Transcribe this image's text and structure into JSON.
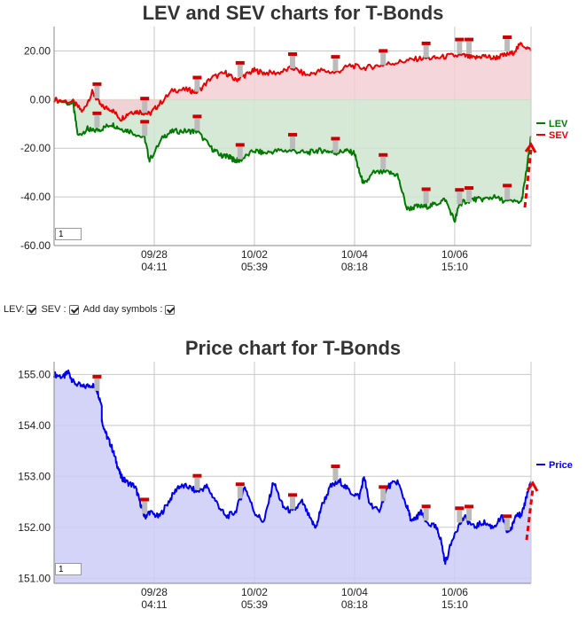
{
  "chart_data": [
    {
      "type": "area",
      "title": "LEV and SEV charts for T-Bonds",
      "xlabel": "",
      "ylabel": "",
      "ylim": [
        -60,
        30
      ],
      "yticks": [
        "20.00",
        "0.00",
        "-20.00",
        "-40.00",
        "-60.00"
      ],
      "ytick_values": [
        20,
        0,
        -20,
        -40,
        -60
      ],
      "xticks": [
        {
          "date": "09/28",
          "time": "04:11",
          "x": 0.21
        },
        {
          "date": "10/02",
          "time": "05:39",
          "x": 0.42
        },
        {
          "date": "10/04",
          "time": "08:18",
          "x": 0.63
        },
        {
          "date": "10/06",
          "time": "15:10",
          "x": 0.84
        }
      ],
      "legend_position": "right",
      "zoom_value": "1",
      "series": [
        {
          "name": "LEV",
          "color": "#007a00",
          "fill": "#cfe5cf",
          "x": [
            0,
            0.04,
            0.05,
            0.07,
            0.08,
            0.1,
            0.12,
            0.14,
            0.16,
            0.19,
            0.2,
            0.23,
            0.25,
            0.28,
            0.3,
            0.33,
            0.35,
            0.36,
            0.37,
            0.38,
            0.39,
            0.42,
            0.44,
            0.47,
            0.5,
            0.53,
            0.55,
            0.57,
            0.59,
            0.61,
            0.63,
            0.64,
            0.65,
            0.67,
            0.7,
            0.72,
            0.74,
            0.76,
            0.78,
            0.8,
            0.82,
            0.84,
            0.85,
            0.86,
            0.88,
            0.9,
            0.92,
            0.95,
            0.98,
            0.99,
            1.0
          ],
          "y": [
            0,
            -2,
            -15,
            -12,
            -13,
            -12,
            -10,
            -12,
            -13,
            -16,
            -25,
            -15,
            -13,
            -13,
            -13,
            -20,
            -23,
            -23,
            -24,
            -25,
            -25,
            -21,
            -22,
            -21,
            -21,
            -22,
            -21,
            -21,
            -22,
            -21,
            -22,
            -30,
            -35,
            -30,
            -30,
            -31,
            -45,
            -44,
            -44,
            -43,
            -41,
            -50,
            -43,
            -42,
            -41,
            -41,
            -40,
            -42,
            -42,
            -30,
            -15
          ]
        },
        {
          "name": "SEV",
          "color": "#ee0000",
          "fill": "#f3cfd3",
          "x": [
            0,
            0.04,
            0.06,
            0.08,
            0.1,
            0.12,
            0.14,
            0.16,
            0.18,
            0.2,
            0.22,
            0.25,
            0.28,
            0.3,
            0.33,
            0.36,
            0.38,
            0.4,
            0.42,
            0.44,
            0.47,
            0.5,
            0.53,
            0.56,
            0.59,
            0.62,
            0.65,
            0.68,
            0.71,
            0.74,
            0.77,
            0.8,
            0.83,
            0.86,
            0.88,
            0.9,
            0.92,
            0.94,
            0.96,
            0.98,
            1.0
          ],
          "y": [
            0,
            -1,
            -5,
            3,
            -3,
            -4,
            -8,
            -5,
            -5,
            -6,
            -2,
            4,
            4,
            3,
            9,
            11,
            8,
            10,
            12,
            11,
            11,
            13,
            10,
            12,
            11,
            14,
            13,
            14,
            15,
            16,
            17,
            17,
            18,
            18,
            17,
            18,
            17,
            18,
            19,
            23,
            20
          ]
        }
      ]
    },
    {
      "type": "area",
      "title": "Price chart for T-Bonds",
      "xlabel": "",
      "ylabel": "",
      "ylim": [
        150.9,
        155.25
      ],
      "yticks": [
        "155.00",
        "154.00",
        "153.00",
        "152.00",
        "151.00"
      ],
      "ytick_values": [
        155,
        154,
        153,
        152,
        151
      ],
      "xticks": [
        {
          "date": "09/28",
          "time": "04:11",
          "x": 0.21
        },
        {
          "date": "10/02",
          "time": "05:39",
          "x": 0.42
        },
        {
          "date": "10/04",
          "time": "08:18",
          "x": 0.63
        },
        {
          "date": "10/06",
          "time": "15:10",
          "x": 0.84
        }
      ],
      "legend_position": "right",
      "zoom_value": "1",
      "series": [
        {
          "name": "Price",
          "color": "#0000ee",
          "fill": "#ccccf7",
          "x": [
            0,
            0.02,
            0.03,
            0.04,
            0.06,
            0.08,
            0.09,
            0.1,
            0.1,
            0.11,
            0.12,
            0.13,
            0.14,
            0.15,
            0.17,
            0.18,
            0.19,
            0.2,
            0.22,
            0.24,
            0.26,
            0.28,
            0.3,
            0.32,
            0.34,
            0.36,
            0.38,
            0.4,
            0.42,
            0.44,
            0.46,
            0.48,
            0.5,
            0.52,
            0.54,
            0.55,
            0.56,
            0.58,
            0.6,
            0.62,
            0.64,
            0.65,
            0.66,
            0.68,
            0.7,
            0.72,
            0.74,
            0.75,
            0.76,
            0.77,
            0.78,
            0.8,
            0.81,
            0.82,
            0.84,
            0.86,
            0.88,
            0.9,
            0.92,
            0.94,
            0.95,
            0.96,
            0.97,
            0.98,
            0.99,
            1.0
          ],
          "y": [
            155,
            154.95,
            155.05,
            154.85,
            154.75,
            154.8,
            154.7,
            154.4,
            154.1,
            153.8,
            153.6,
            153.3,
            153.0,
            152.9,
            152.8,
            152.5,
            152.2,
            152.3,
            152.2,
            152.5,
            152.8,
            152.8,
            152.7,
            152.8,
            152.5,
            152.2,
            152.3,
            152.8,
            152.3,
            152.1,
            152.9,
            152.4,
            152.3,
            152.5,
            152.1,
            152.0,
            152.4,
            152.8,
            152.9,
            152.7,
            152.6,
            153.0,
            152.5,
            152.3,
            152.8,
            152.9,
            152.4,
            152.1,
            152.2,
            152.3,
            152.1,
            152.0,
            151.8,
            151.3,
            151.9,
            152.2,
            152.0,
            152.1,
            152.0,
            152.2,
            151.9,
            152.0,
            152.3,
            152.2,
            152.6,
            152.9
          ]
        }
      ]
    }
  ],
  "controls": {
    "lev_label": "LEV:",
    "sev_label": "SEV :",
    "daysym_label": "Add day symbols :"
  },
  "colors": {
    "grid": "#c8c8c8",
    "axis": "#888888",
    "arrow": "#ee0000",
    "marker_red": "#cc0000",
    "marker_gray": "#bbbbbb"
  }
}
